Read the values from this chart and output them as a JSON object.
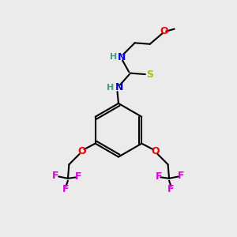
{
  "background_color": "#ebebeb",
  "atom_colors": {
    "C": "#000000",
    "H": "#4a9a8a",
    "N": "#0000ee",
    "O": "#ee0000",
    "S": "#bbbb00",
    "F": "#dd00dd"
  },
  "bond_color": "#000000",
  "bond_width": 1.5,
  "figsize": [
    3.0,
    3.0
  ],
  "dpi": 100,
  "xlim": [
    0,
    10
  ],
  "ylim": [
    0,
    10
  ]
}
